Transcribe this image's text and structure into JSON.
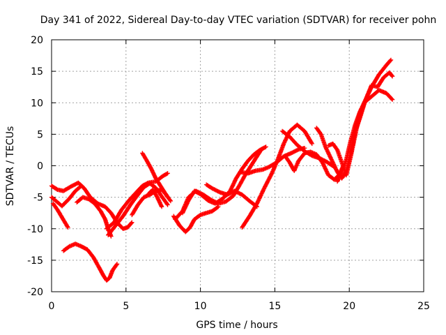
{
  "chart_data": {
    "type": "scatter",
    "marker": "+",
    "color": "#ff0000",
    "title": "Day 341 of 2022, Sidereal Day-to-day VTEC variation (SDTVAR) for receiver pohn",
    "xlabel": "GPS time / hours",
    "ylabel": "SDTVAR / TECUs",
    "xlim": [
      0,
      25
    ],
    "ylim": [
      -20,
      20
    ],
    "xticks": [
      0,
      5,
      10,
      15,
      20,
      25
    ],
    "yticks": [
      -20,
      -15,
      -10,
      -5,
      0,
      5,
      10,
      15,
      20
    ],
    "xtick_labels": [
      "0",
      "5",
      "10",
      "15",
      "20",
      "25"
    ],
    "ytick_labels": [
      "-20",
      "-15",
      "-10",
      "-5",
      "0",
      "5",
      "10",
      "15",
      "20"
    ],
    "grid": true,
    "series": [
      {
        "name": "track-1",
        "x": [
          0.0,
          0.4,
          0.8,
          1.3,
          1.8,
          2.2,
          2.6,
          3.1,
          3.6,
          4.0,
          4.4,
          4.8,
          5.1,
          5.4
        ],
        "y": [
          -3.2,
          -3.8,
          -4.0,
          -3.3,
          -2.7,
          -3.6,
          -5.0,
          -6.0,
          -6.5,
          -7.5,
          -9.0,
          -10.0,
          -9.8,
          -9.0
        ]
      },
      {
        "name": "track-2",
        "x": [
          0.0,
          0.3,
          0.7,
          1.2,
          1.6,
          2.0
        ],
        "y": [
          -5.0,
          -5.6,
          -6.4,
          -5.2,
          -4.0,
          -3.2
        ]
      },
      {
        "name": "track-3",
        "x": [
          0.1,
          0.4,
          0.8,
          1.1
        ],
        "y": [
          -6.0,
          -7.0,
          -8.6,
          -9.8
        ]
      },
      {
        "name": "track-4",
        "x": [
          0.8,
          1.2,
          1.6,
          2.0,
          2.4,
          2.8,
          3.2,
          3.5,
          3.7,
          3.9,
          4.1,
          4.4
        ],
        "y": [
          -13.5,
          -12.8,
          -12.4,
          -12.8,
          -13.3,
          -14.5,
          -16.2,
          -17.5,
          -18.2,
          -17.8,
          -16.6,
          -15.6
        ]
      },
      {
        "name": "track-5",
        "x": [
          1.7,
          2.1,
          2.5,
          2.9,
          3.3,
          3.6,
          3.8,
          4.0
        ],
        "y": [
          -5.8,
          -5.0,
          -5.3,
          -6.0,
          -7.2,
          -8.5,
          -10.0,
          -11.2
        ]
      },
      {
        "name": "track-6",
        "x": [
          3.7,
          4.2,
          4.7,
          5.2,
          5.7,
          6.1,
          6.5,
          7.0,
          7.5,
          7.8
        ],
        "y": [
          -10.0,
          -9.0,
          -7.0,
          -5.5,
          -4.2,
          -3.2,
          -2.7,
          -2.5,
          -1.6,
          -1.2
        ]
      },
      {
        "name": "track-7",
        "x": [
          3.8,
          4.3,
          4.8,
          5.3,
          5.8,
          6.2,
          6.6,
          7.0,
          7.5,
          7.8
        ],
        "y": [
          -11.0,
          -9.5,
          -8.0,
          -6.2,
          -4.6,
          -3.4,
          -2.8,
          -3.5,
          -5.2,
          -6.2
        ]
      },
      {
        "name": "track-8",
        "x": [
          5.4,
          5.8,
          6.2,
          6.6,
          7.0,
          7.4,
          7.7,
          8.0
        ],
        "y": [
          -7.8,
          -6.2,
          -5.0,
          -4.6,
          -4.0,
          -3.8,
          -4.6,
          -5.6
        ]
      },
      {
        "name": "track-9",
        "x": [
          6.1,
          6.4,
          6.7,
          7.0,
          7.4,
          7.8
        ],
        "y": [
          2.0,
          0.8,
          -0.5,
          -2.0,
          -3.5,
          -5.0
        ]
      },
      {
        "name": "track-10",
        "x": [
          6.5,
          6.8,
          7.1,
          7.4
        ],
        "y": [
          -4.5,
          -3.8,
          -5.0,
          -6.5
        ]
      },
      {
        "name": "track-11",
        "x": [
          8.2,
          8.6,
          9.0,
          9.3,
          9.6,
          10.0,
          10.4,
          10.8,
          11.2
        ],
        "y": [
          -8.0,
          -9.5,
          -10.5,
          -9.8,
          -8.5,
          -7.8,
          -7.5,
          -7.2,
          -6.5
        ]
      },
      {
        "name": "track-12",
        "x": [
          8.3,
          8.8,
          9.2,
          9.7,
          10.2,
          10.7,
          11.2,
          11.7,
          12.2,
          12.6,
          13.0,
          13.4,
          13.8,
          14.1
        ],
        "y": [
          -8.5,
          -7.2,
          -5.0,
          -4.0,
          -4.6,
          -5.4,
          -6.0,
          -5.7,
          -4.8,
          -3.2,
          -1.5,
          0.0,
          1.5,
          2.6
        ]
      },
      {
        "name": "track-13",
        "x": [
          8.8,
          9.2,
          9.6,
          10.0,
          10.5,
          11.0,
          11.5,
          12.0,
          12.4,
          12.8,
          13.2,
          13.6,
          14.0,
          14.4
        ],
        "y": [
          -7.5,
          -5.5,
          -4.0,
          -4.5,
          -5.5,
          -6.0,
          -5.2,
          -4.0,
          -2.0,
          -0.5,
          0.8,
          1.8,
          2.5,
          3.0
        ]
      },
      {
        "name": "track-14",
        "x": [
          10.4,
          10.8,
          11.3,
          11.8,
          12.3,
          12.8,
          13.3,
          13.8
        ],
        "y": [
          -3.0,
          -3.6,
          -4.2,
          -4.6,
          -4.0,
          -4.6,
          -5.6,
          -6.5
        ]
      },
      {
        "name": "track-15",
        "x": [
          12.7,
          13.2,
          13.7,
          14.2,
          14.6,
          15.1,
          15.6,
          16.1,
          16.6,
          17.0
        ],
        "y": [
          -1.0,
          -1.2,
          -0.8,
          -0.6,
          -0.2,
          0.5,
          1.5,
          2.0,
          2.6,
          2.8
        ]
      },
      {
        "name": "track-16",
        "x": [
          12.8,
          13.3,
          13.8,
          14.3,
          14.8,
          15.2,
          15.6,
          16.0,
          16.5,
          17.0,
          17.5
        ],
        "y": [
          -9.8,
          -8.0,
          -6.0,
          -3.5,
          -1.2,
          1.0,
          3.5,
          5.5,
          6.5,
          5.5,
          3.5
        ]
      },
      {
        "name": "track-17",
        "x": [
          15.5,
          16.0,
          16.5,
          17.0,
          17.5,
          18.0,
          18.5,
          19.0
        ],
        "y": [
          5.5,
          4.6,
          3.3,
          2.3,
          1.6,
          1.2,
          0.6,
          -0.2
        ]
      },
      {
        "name": "track-18",
        "x": [
          15.7,
          16.0,
          16.3,
          16.6,
          17.0,
          17.4,
          17.8,
          18.2,
          18.6,
          19.0,
          19.3,
          19.6
        ],
        "y": [
          1.5,
          0.5,
          -0.8,
          0.8,
          2.0,
          2.2,
          1.8,
          0.5,
          -1.5,
          -2.2,
          -1.5,
          0.0
        ]
      },
      {
        "name": "track-19",
        "x": [
          17.8,
          18.1,
          18.4,
          18.8,
          19.2,
          19.5,
          19.8,
          20.1,
          20.4,
          20.8
        ],
        "y": [
          6.0,
          5.0,
          3.0,
          1.0,
          -1.0,
          -2.0,
          -1.0,
          2.0,
          5.5,
          9.0
        ]
      },
      {
        "name": "track-20",
        "x": [
          18.6,
          18.9,
          19.2,
          19.5,
          19.8,
          20.1,
          20.5,
          21.0,
          21.5,
          22.0,
          22.5,
          22.8
        ],
        "y": [
          3.2,
          3.5,
          2.5,
          0.5,
          -1.5,
          1.5,
          6.0,
          10.0,
          12.5,
          14.5,
          16.0,
          16.8
        ]
      },
      {
        "name": "track-21",
        "x": [
          19.2,
          19.5,
          19.8,
          20.1,
          20.4,
          20.7,
          21.0,
          21.5,
          22.0,
          22.5,
          22.9
        ],
        "y": [
          -2.5,
          -1.0,
          1.0,
          4.0,
          6.5,
          8.5,
          10.0,
          11.0,
          12.0,
          11.5,
          10.5
        ]
      },
      {
        "name": "track-22",
        "x": [
          20.3,
          20.7,
          21.1,
          21.5,
          21.9,
          22.3,
          22.7,
          22.9
        ],
        "y": [
          5.0,
          7.5,
          10.5,
          12.8,
          12.5,
          14.0,
          14.8,
          14.2
        ]
      }
    ]
  }
}
